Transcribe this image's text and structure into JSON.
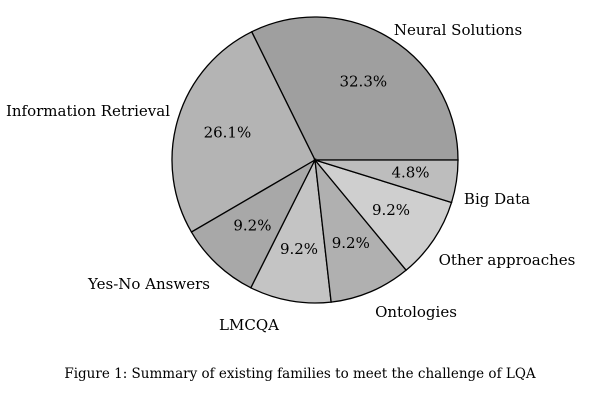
{
  "caption": "Figure 1: Summary of existing families to meet the challenge of LQA",
  "chart_data": {
    "type": "pie",
    "title": "",
    "start_angle_deg": 0,
    "direction": "counterclockwise",
    "legend": "none",
    "slices": [
      {
        "label": "Neural Solutions",
        "value": 32.3,
        "value_label": "32.3%",
        "color": "#9f9f9f"
      },
      {
        "label": "Information Retrieval",
        "value": 26.1,
        "value_label": "26.1%",
        "color": "#b4b4b4"
      },
      {
        "label": "Yes-No Answers",
        "value": 9.2,
        "value_label": "9.2%",
        "color": "#a8a8a8"
      },
      {
        "label": "LMCQA",
        "value": 9.2,
        "value_label": "9.2%",
        "color": "#c4c4c4"
      },
      {
        "label": "Ontologies",
        "value": 9.2,
        "value_label": "9.2%",
        "color": "#b0b0b0"
      },
      {
        "label": "Other approaches",
        "value": 9.2,
        "value_label": "9.2%",
        "color": "#cfcfcf"
      },
      {
        "label": "Big Data",
        "value": 4.8,
        "value_label": "4.8%",
        "color": "#bdbdbd"
      }
    ]
  }
}
